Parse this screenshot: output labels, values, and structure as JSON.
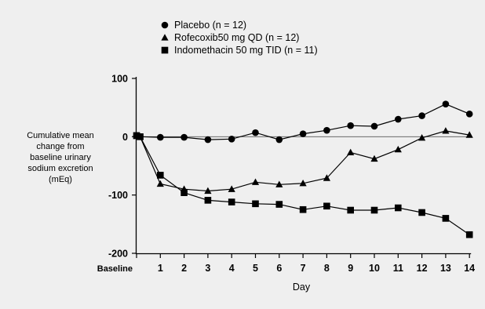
{
  "chart_data": {
    "type": "line",
    "title": "",
    "xlabel": "Day",
    "ylabel_lines": [
      "Cumulative mean",
      "change from",
      "baseline urinary",
      "sodium excretion",
      "(mEq)"
    ],
    "categories": [
      "Baseline",
      "1",
      "2",
      "3",
      "4",
      "5",
      "6",
      "7",
      "8",
      "9",
      "10",
      "11",
      "12",
      "13",
      "14"
    ],
    "x": [
      0,
      1,
      2,
      3,
      4,
      5,
      6,
      7,
      8,
      9,
      10,
      11,
      12,
      13,
      14
    ],
    "yticks": [
      "100",
      "0",
      "-100",
      "-200"
    ],
    "ylim": [
      -200,
      100
    ],
    "grid": false,
    "reference_line": 0,
    "legend_placement": "top-left",
    "series": [
      {
        "name": "Placebo (n = 12)",
        "marker": "circle",
        "x": [
          0,
          0.15,
          1,
          2,
          3,
          4,
          5,
          6,
          7,
          8,
          9,
          10,
          11,
          12,
          13,
          14
        ],
        "values": [
          2,
          0,
          -1,
          -1,
          -5,
          -4,
          7,
          -5,
          5,
          11,
          19,
          18,
          30,
          36,
          56,
          39
        ]
      },
      {
        "name": "Rofecoxib50 mg QD (n = 12)",
        "marker": "triangle",
        "x": [
          0,
          0.15,
          1,
          2,
          3,
          4,
          5,
          6,
          7,
          8,
          9,
          10,
          11,
          12,
          13,
          14
        ],
        "values": [
          1,
          0,
          -81,
          -90,
          -93,
          -90,
          -78,
          -82,
          -80,
          -71,
          -27,
          -38,
          -22,
          -2,
          10,
          3
        ]
      },
      {
        "name": "Indomethacin 50 mg TID (n = 11)",
        "marker": "square",
        "x": [
          0,
          0.15,
          1,
          2,
          3,
          4,
          5,
          6,
          7,
          8,
          9,
          10,
          11,
          12,
          13,
          14
        ],
        "values": [
          2,
          0,
          -66,
          -96,
          -109,
          -112,
          -115,
          -116,
          -125,
          -119,
          -126,
          -126,
          -122,
          -130,
          -140,
          -168
        ]
      }
    ]
  },
  "colors": {
    "panel_background": "#efefef",
    "ink": "#000000"
  }
}
